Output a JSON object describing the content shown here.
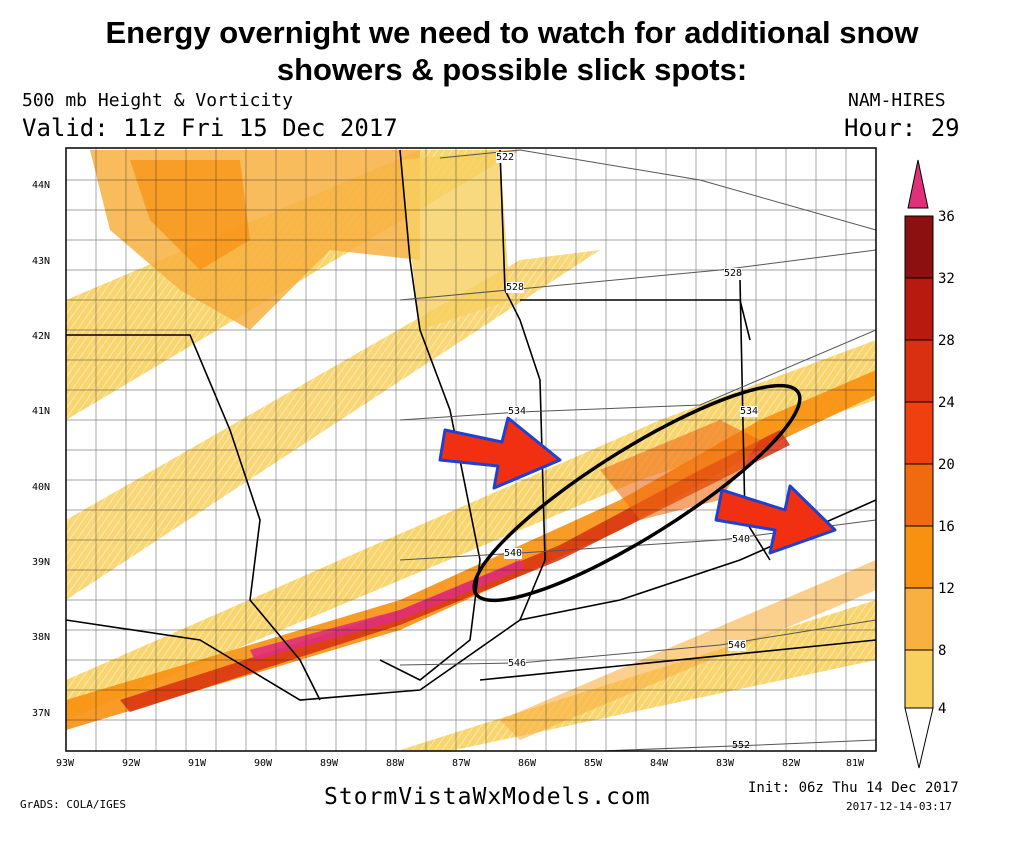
{
  "headline": {
    "line1": "Energy overnight we need to watch for additional snow",
    "line2": "showers & possible slick spots:"
  },
  "header": {
    "field": "500 mb Height & Vorticity",
    "valid": "Valid: 11z Fri 15 Dec 2017",
    "model": "NAM-HIRES",
    "hour": "Hour: 29"
  },
  "map": {
    "lat_labels": [
      "44N",
      "43N",
      "42N",
      "41N",
      "40N",
      "39N",
      "38N",
      "37N"
    ],
    "lon_labels": [
      "93W",
      "92W",
      "91W",
      "90W",
      "89W",
      "88W",
      "87W",
      "86W",
      "85W",
      "84W",
      "83W",
      "82W",
      "81W"
    ],
    "contour_labels": [
      "522",
      "528",
      "528",
      "534",
      "534",
      "540",
      "540",
      "546",
      "546",
      "552"
    ],
    "annotations": {
      "circle": "ellipse around vorticity band over Indiana/Ohio",
      "arrows": [
        "arrow-left",
        "arrow-right"
      ]
    }
  },
  "colorbar": {
    "levels": [
      "36",
      "32",
      "28",
      "24",
      "20",
      "16",
      "12",
      "8",
      "4"
    ],
    "colors": [
      "#e0307a",
      "#8c1010",
      "#b81a10",
      "#d83010",
      "#f04010",
      "#f06a10",
      "#f89010",
      "#f8b040",
      "#f8d060",
      "#fde070"
    ]
  },
  "footer": {
    "grads": "GrADS: COLA/IGES",
    "brand": "StormVistaWxModels.com",
    "init": "Init: 06z Thu 14 Dec 2017",
    "timestamp": "2017-12-14-03:17"
  }
}
